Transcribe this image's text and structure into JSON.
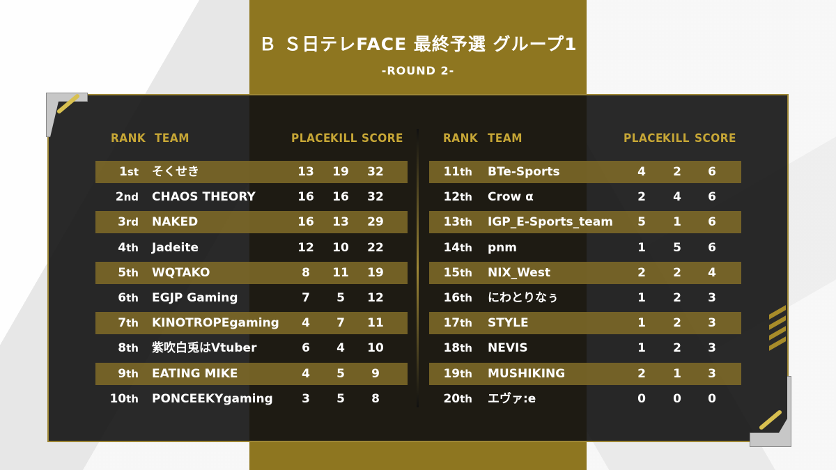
{
  "title": "Ｂ Ｓ日テレFACE 最終予選 グループ1",
  "subtitle": "-ROUND 2-",
  "colors": {
    "gold": "#8e7620",
    "header_text": "#c6a636",
    "panel": "#121212"
  },
  "headers": {
    "rank": "RANK",
    "team": "TEAM",
    "place": "PLACE",
    "kill": "KILL",
    "score": "SCORE"
  },
  "left_rows": [
    {
      "rank": "1",
      "suffix": "st",
      "team": "そくせき",
      "place": "13",
      "kill": "19",
      "score": "32"
    },
    {
      "rank": "2",
      "suffix": "nd",
      "team": "CHAOS THEORY",
      "place": "16",
      "kill": "16",
      "score": "32"
    },
    {
      "rank": "3",
      "suffix": "rd",
      "team": "NAKED",
      "place": "16",
      "kill": "13",
      "score": "29"
    },
    {
      "rank": "4",
      "suffix": "th",
      "team": "Jadeite",
      "place": "12",
      "kill": "10",
      "score": "22"
    },
    {
      "rank": "5",
      "suffix": "th",
      "team": "WQTAKO",
      "place": "8",
      "kill": "11",
      "score": "19"
    },
    {
      "rank": "6",
      "suffix": "th",
      "team": "EGJP Gaming",
      "place": "7",
      "kill": "5",
      "score": "12"
    },
    {
      "rank": "7",
      "suffix": "th",
      "team": "KINOTROPEgaming",
      "place": "4",
      "kill": "7",
      "score": "11"
    },
    {
      "rank": "8",
      "suffix": "th",
      "team": "紫吹白兎はVtuber",
      "place": "6",
      "kill": "4",
      "score": "10"
    },
    {
      "rank": "9",
      "suffix": "th",
      "team": "EATING MIKE",
      "place": "4",
      "kill": "5",
      "score": "9"
    },
    {
      "rank": "10",
      "suffix": "th",
      "team": "PONCEEKYgaming",
      "place": "3",
      "kill": "5",
      "score": "8"
    }
  ],
  "right_rows": [
    {
      "rank": "11",
      "suffix": "th",
      "team": "BTe-Sports",
      "place": "4",
      "kill": "2",
      "score": "6"
    },
    {
      "rank": "12",
      "suffix": "th",
      "team": "Crow α",
      "place": "2",
      "kill": "4",
      "score": "6"
    },
    {
      "rank": "13",
      "suffix": "th",
      "team": "IGP_E-Sports_team",
      "place": "5",
      "kill": "1",
      "score": "6"
    },
    {
      "rank": "14",
      "suffix": "th",
      "team": "pnm",
      "place": "1",
      "kill": "5",
      "score": "6"
    },
    {
      "rank": "15",
      "suffix": "th",
      "team": "NIX_West",
      "place": "2",
      "kill": "2",
      "score": "4"
    },
    {
      "rank": "16",
      "suffix": "th",
      "team": "にわとりなぅ",
      "place": "1",
      "kill": "2",
      "score": "3"
    },
    {
      "rank": "17",
      "suffix": "th",
      "team": "STYLE",
      "place": "1",
      "kill": "2",
      "score": "3"
    },
    {
      "rank": "18",
      "suffix": "th",
      "team": "NEVIS",
      "place": "1",
      "kill": "2",
      "score": "3"
    },
    {
      "rank": "19",
      "suffix": "th",
      "team": "MUSHIKING",
      "place": "2",
      "kill": "1",
      "score": "3"
    },
    {
      "rank": "20",
      "suffix": "th",
      "team": "エヴァ:e",
      "place": "0",
      "kill": "0",
      "score": "0"
    }
  ]
}
